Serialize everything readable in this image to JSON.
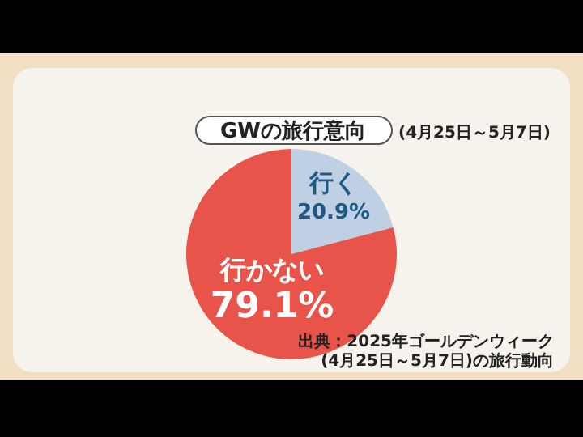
{
  "chart_data": {
    "type": "pie",
    "title": "GWの旅行意向",
    "subtitle": "(4月25日～5月7日)",
    "categories": [
      "行く",
      "行かない"
    ],
    "values": [
      20.9,
      79.1
    ],
    "value_labels": [
      "20.9%",
      "79.1%"
    ],
    "colors": [
      "#c0d0e4",
      "#e8534a"
    ],
    "legend": false,
    "annotations": [
      "出典：2025年ゴールデンウィーク",
      "(4月25日～5月7日)の旅行動向"
    ]
  }
}
